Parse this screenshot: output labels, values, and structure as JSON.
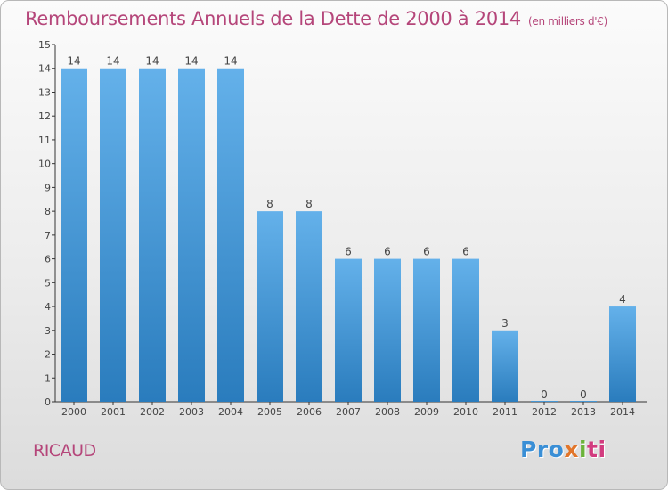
{
  "header": {
    "title": "Remboursements Annuels de la Dette de 2000 à 2014",
    "subtitle": "(en milliers d'€)"
  },
  "footer": {
    "commune": "RICAUD",
    "logo_parts": [
      "Pro",
      "x",
      "i",
      "ti"
    ]
  },
  "colors": {
    "title": "#b5467a",
    "bar_top": "#64b1ea",
    "bar_bottom": "#2a7cbd"
  },
  "chart_data": {
    "type": "bar",
    "categories": [
      "2000",
      "2001",
      "2002",
      "2003",
      "2004",
      "2005",
      "2006",
      "2007",
      "2008",
      "2009",
      "2010",
      "2011",
      "2012",
      "2013",
      "2014"
    ],
    "values": [
      14,
      14,
      14,
      14,
      14,
      8,
      8,
      6,
      6,
      6,
      6,
      3,
      0,
      0,
      4
    ],
    "title": "Remboursements Annuels de la Dette de 2000 à 2014",
    "subtitle": "(en milliers d'€)",
    "ylim": [
      0,
      15
    ],
    "yticks": [
      0,
      1,
      2,
      3,
      4,
      5,
      6,
      7,
      8,
      9,
      10,
      11,
      12,
      13,
      14,
      15
    ],
    "grid": false,
    "data_labels": true
  }
}
